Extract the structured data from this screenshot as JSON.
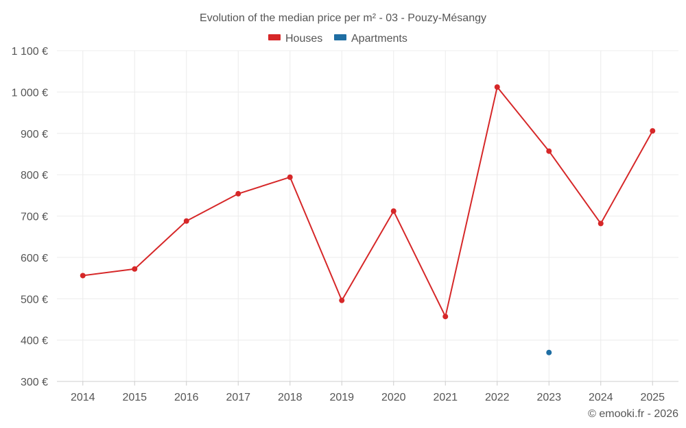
{
  "chart_data": {
    "type": "line",
    "title": "Evolution of the median price per m² - 03 - Pouzy-Mésangy",
    "xlabel": "",
    "ylabel": "",
    "categories": [
      "2014",
      "2015",
      "2016",
      "2017",
      "2018",
      "2019",
      "2020",
      "2021",
      "2022",
      "2023",
      "2024",
      "2025"
    ],
    "ylim": [
      300,
      1100
    ],
    "yticks": [
      300,
      400,
      500,
      600,
      700,
      800,
      900,
      1000,
      1100
    ],
    "ytick_labels": [
      "300 €",
      "400 €",
      "500 €",
      "600 €",
      "700 €",
      "800 €",
      "900 €",
      "1 000 €",
      "1 100 €"
    ],
    "grid": true,
    "legend_position": "top-center",
    "series": [
      {
        "name": "Houses",
        "color": "#d62728",
        "values": [
          556,
          572,
          688,
          754,
          794,
          496,
          712,
          457,
          1012,
          857,
          682,
          906
        ]
      },
      {
        "name": "Apartments",
        "color": "#1f6ea3",
        "values": [
          null,
          null,
          null,
          null,
          null,
          null,
          null,
          null,
          null,
          370,
          null,
          null
        ]
      }
    ]
  },
  "credit": "© emooki.fr - 2026"
}
